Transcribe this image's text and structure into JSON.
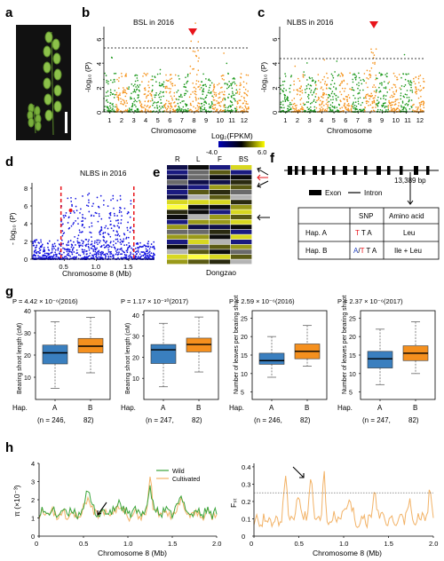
{
  "panels": {
    "a": "a",
    "b": "b",
    "c": "c",
    "d": "d",
    "e": "e",
    "f": "f",
    "g": "g",
    "h": "h"
  },
  "panel_b": {
    "title": "BSL in 2016",
    "ylabel": "-log₁₀ (P)",
    "xlabel": "Chromosome",
    "yticks": [
      "0",
      "2",
      "4",
      "6"
    ],
    "chromosomes": [
      "1",
      "2",
      "3",
      "4",
      "5",
      "6",
      "7",
      "8",
      "9",
      "10",
      "11",
      "12"
    ],
    "threshold": 5.0,
    "marker_chr": 8,
    "colors": {
      "odd": "#1f9a1f",
      "even": "#f5941e",
      "marker": "#e8141b"
    }
  },
  "panel_c": {
    "title": "NLBS in 2016",
    "ylabel": "-log₁₀ (P)",
    "xlabel": "Chromosome",
    "yticks": [
      "0",
      "2",
      "4",
      "6"
    ],
    "chromosomes": [
      "1",
      "2",
      "3",
      "4",
      "5",
      "6",
      "7",
      "8",
      "9",
      "10",
      "11",
      "12"
    ],
    "threshold": 5.0,
    "marker_chr": 8
  },
  "panel_d": {
    "title": "NLBS in 2016",
    "ylabel": "- log₁₀ (P)",
    "xlabel": "Chromosome 8 (Mb)",
    "yticks": [
      "0",
      "2",
      "4",
      "6",
      "8"
    ],
    "xticks": [
      "0.5",
      "1.0",
      "1.5"
    ],
    "region_mb": [
      0.45,
      1.58
    ],
    "color": "#1414e0"
  },
  "panel_e": {
    "legend_title": "Log₂(FPKM)",
    "legend_min": "-4.0",
    "legend_max": "6.0",
    "columns": [
      "R",
      "L",
      "F",
      "BS"
    ],
    "sample": "Dongzao"
  },
  "panel_f": {
    "size": "13,389 bp",
    "exon": "Exon",
    "intron": "Intron",
    "table": {
      "headers": [
        "",
        "SNP",
        "Amino acid"
      ],
      "hapA": {
        "label": "Hap. A",
        "snp_first": "T",
        "snp_rest": " T A",
        "aa": "Leu"
      },
      "hapB": {
        "label": "Hap. B",
        "snp_a": "A",
        "snp_slash": "/",
        "snp_t": "T",
        "snp_rest": " T A",
        "aa": "Ile + Leu"
      }
    }
  },
  "panel_g": {
    "plots": [
      {
        "pval": "P = 4.42 × 10⁻⁶(2016)",
        "ylabel": "Bearing shoot length (cM)",
        "yticks": [
          10,
          20,
          30,
          40
        ],
        "ylim": [
          0,
          40
        ],
        "A": {
          "whislo": 5,
          "q1": 16,
          "med": 21,
          "q3": 24.5,
          "whishi": 35
        },
        "B": {
          "whislo": 12,
          "q1": 21,
          "med": 24,
          "q3": 27.5,
          "whishi": 37
        },
        "n_a": "(n = 246,",
        "n_b": "82)"
      },
      {
        "pval": "P = 1.17 × 10⁻¹⁰(2017)",
        "ylabel": "Bearing shoot length (cM)",
        "yticks": [
          10,
          20,
          30,
          40
        ],
        "ylim": [
          0,
          42
        ],
        "A": {
          "whislo": 6,
          "q1": 17,
          "med": 23.5,
          "q3": 26,
          "whishi": 36
        },
        "B": {
          "whislo": 13,
          "q1": 22.5,
          "med": 26,
          "q3": 29,
          "whishi": 39
        },
        "n_a": "(n = 247,",
        "n_b": "82)"
      },
      {
        "pval": "P = 2.59 × 10⁻⁶(2016)",
        "ylabel": "Number of leaves per bearing shoot",
        "yticks": [
          5,
          10,
          15,
          20,
          25
        ],
        "ylim": [
          3,
          27
        ],
        "A": {
          "whislo": 9,
          "q1": 12.5,
          "med": 13.5,
          "q3": 15.5,
          "whishi": 20
        },
        "B": {
          "whislo": 12,
          "q1": 14,
          "med": 16,
          "q3": 18,
          "whishi": 23
        },
        "n_a": "(n = 246,",
        "n_b": "82)"
      },
      {
        "pval": "P = 2.37 × 10⁻⁶(2017)",
        "ylabel": "Number of leaves per bearing shoot",
        "yticks": [
          5,
          10,
          15,
          20,
          25
        ],
        "ylim": [
          3,
          27
        ],
        "A": {
          "whislo": 7,
          "q1": 11.5,
          "med": 14,
          "q3": 16,
          "whishi": 22
        },
        "B": {
          "whislo": 10,
          "q1": 13.5,
          "med": 15.5,
          "q3": 17.5,
          "whishi": 24
        },
        "n_a": "(n = 247,",
        "n_b": "82)"
      }
    ],
    "hap_label": "Hap.",
    "cat_a": "A",
    "cat_b": "B",
    "color_a": "#3a7fbf",
    "color_b": "#f5901e"
  },
  "panel_h": {
    "left": {
      "ylabel": "π (×10⁻³)",
      "xlabel": "Chromosome 8 (Mb)",
      "yticks": [
        "0",
        "1",
        "2",
        "3",
        "4"
      ],
      "xticks": [
        "0",
        "0.5",
        "1.0",
        "1.5",
        "2.0"
      ],
      "legend": [
        "Wild",
        "Cultivated"
      ],
      "colors": {
        "wild": "#3aa43a",
        "cultivated": "#f2b266"
      }
    },
    "right": {
      "ylabel": "Fₛₜ",
      "xlabel": "Chromosome 8 (Mb)",
      "yticks": [
        "0",
        "0.1",
        "0.2",
        "0.3",
        "0.4"
      ],
      "xticks": [
        "0",
        "0.5",
        "1.0",
        "1.5",
        "2.0"
      ],
      "threshold": 0.25
    }
  }
}
